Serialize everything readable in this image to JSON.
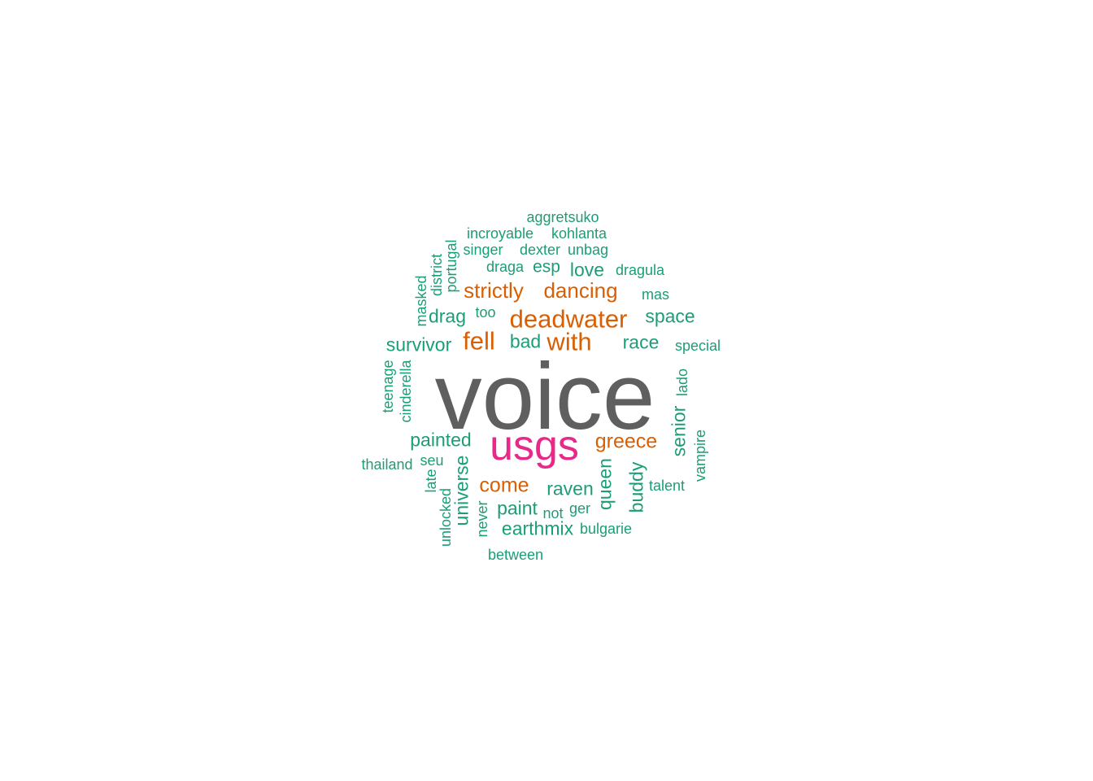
{
  "colors": {
    "dominant": "#5f5f5f",
    "secondary": "#e7298a",
    "tertiary": "#d95f02",
    "base": "#1b9e77"
  },
  "words": [
    {
      "text": "voice",
      "level": "dominant"
    },
    {
      "text": "usgs",
      "level": "secondary"
    },
    {
      "text": "deadwater",
      "level": "tertiary"
    },
    {
      "text": "strictly",
      "level": "tertiary"
    },
    {
      "text": "dancing",
      "level": "tertiary"
    },
    {
      "text": "fell",
      "level": "tertiary"
    },
    {
      "text": "with",
      "level": "tertiary"
    },
    {
      "text": "greece",
      "level": "tertiary"
    },
    {
      "text": "come",
      "level": "tertiary"
    },
    {
      "text": "aggretsuko",
      "level": "base"
    },
    {
      "text": "incroyable",
      "level": "base"
    },
    {
      "text": "kohlanta",
      "level": "base"
    },
    {
      "text": "singer",
      "level": "base"
    },
    {
      "text": "dexter",
      "level": "base"
    },
    {
      "text": "unbag",
      "level": "base"
    },
    {
      "text": "draga",
      "level": "base"
    },
    {
      "text": "esp",
      "level": "base"
    },
    {
      "text": "love",
      "level": "base"
    },
    {
      "text": "dragula",
      "level": "base"
    },
    {
      "text": "mas",
      "level": "base"
    },
    {
      "text": "drag",
      "level": "base"
    },
    {
      "text": "too",
      "level": "base"
    },
    {
      "text": "space",
      "level": "base"
    },
    {
      "text": "survivor",
      "level": "base"
    },
    {
      "text": "bad",
      "level": "base"
    },
    {
      "text": "race",
      "level": "base"
    },
    {
      "text": "special",
      "level": "base"
    },
    {
      "text": "masked",
      "level": "base"
    },
    {
      "text": "district",
      "level": "base"
    },
    {
      "text": "portugal",
      "level": "base"
    },
    {
      "text": "teenage",
      "level": "base"
    },
    {
      "text": "cinderella",
      "level": "base"
    },
    {
      "text": "lado",
      "level": "base"
    },
    {
      "text": "senior",
      "level": "base"
    },
    {
      "text": "vampire",
      "level": "base"
    },
    {
      "text": "painted",
      "level": "base"
    },
    {
      "text": "thailand",
      "level": "base"
    },
    {
      "text": "seu",
      "level": "base"
    },
    {
      "text": "late",
      "level": "base"
    },
    {
      "text": "universe",
      "level": "base"
    },
    {
      "text": "unlocked",
      "level": "base"
    },
    {
      "text": "never",
      "level": "base"
    },
    {
      "text": "queen",
      "level": "base"
    },
    {
      "text": "buddy",
      "level": "base"
    },
    {
      "text": "talent",
      "level": "base"
    },
    {
      "text": "raven",
      "level": "base"
    },
    {
      "text": "paint",
      "level": "base"
    },
    {
      "text": "not",
      "level": "base"
    },
    {
      "text": "ger",
      "level": "base"
    },
    {
      "text": "earthmix",
      "level": "base"
    },
    {
      "text": "bulgarie",
      "level": "base"
    },
    {
      "text": "between",
      "level": "base"
    }
  ]
}
